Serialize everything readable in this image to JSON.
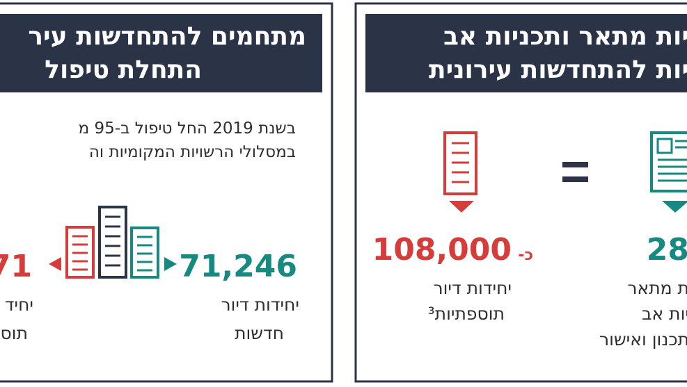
{
  "left_panel": {
    "header": [
      "מתחמים להתחדשות עיר",
      "התחלת טיפול"
    ],
    "body": [
      "בשנת 2019 החל טיפול ב-95 מ",
      "במסלולי הרשויות המקומיות וה"
    ],
    "stats": [
      {
        "value": "71,246",
        "label": [
          "יחידות דיור",
          "חדשות"
        ]
      },
      {
        "value": "71",
        "label": [
          "יחיד",
          "תוס"
        ]
      }
    ]
  },
  "right_panel": {
    "header": [
      "יות מתאר ותכניות אב",
      "יות להתחדשות עירונית"
    ],
    "stats": [
      {
        "prefix": "כ-",
        "value": "108,000",
        "label": [
          "יחידות דיור",
          "תוספתיות³"
        ]
      },
      {
        "value": "28",
        "label": [
          "ת מתאר",
          "יות אב",
          "תכנון ואישור"
        ]
      }
    ]
  }
}
